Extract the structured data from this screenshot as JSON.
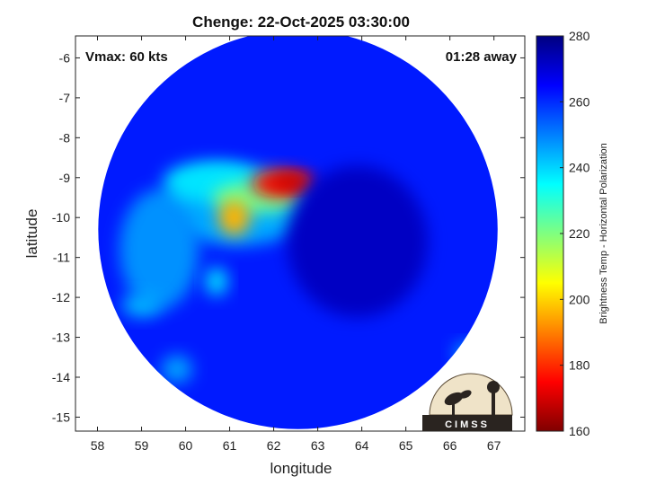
{
  "chart_data": {
    "type": "heatmap",
    "title": "Chenge: 22-Oct-2025 03:30:00",
    "xlabel": "longitude",
    "ylabel": "latitude",
    "xlim": [
      57.5,
      67.7
    ],
    "ylim": [
      -15.35,
      -5.45
    ],
    "xticks": [
      "58",
      "59",
      "60",
      "61",
      "62",
      "63",
      "64",
      "65",
      "66",
      "67"
    ],
    "yticks": [
      "-6",
      "-7",
      "-8",
      "-9",
      "-10",
      "-11",
      "-12",
      "-13",
      "-14",
      "-15"
    ],
    "grid": false,
    "annotations": {
      "top_left": "Vmax: 60 kts",
      "top_right": "01:28 away"
    },
    "colorbar": {
      "label": "Brightness Temp - Horizontal Polarization",
      "range": [
        160,
        280
      ],
      "ticks": [
        "280",
        "260",
        "240",
        "220",
        "200",
        "180",
        "160"
      ],
      "colormap": "jet"
    },
    "swath": {
      "center": [
        62.55,
        -10.3
      ],
      "radius_deg": 5.0
    },
    "features": [
      {
        "name": "background",
        "lon": 62.5,
        "lat": -10.5,
        "rlon": 5.5,
        "rlat": 5.5,
        "value": 262
      },
      {
        "name": "moist-envelope",
        "lon": 61.2,
        "lat": -9.7,
        "rlon": 1.7,
        "rlat": 1.0,
        "value": 245
      },
      {
        "name": "western-band",
        "lon": 59.4,
        "lat": -10.8,
        "rlon": 0.9,
        "rlat": 1.5,
        "value": 248
      },
      {
        "name": "outer-rainband",
        "lon": 60.6,
        "lat": -9.1,
        "rlon": 1.1,
        "rlat": 0.5,
        "value": 238
      },
      {
        "name": "convective-arc",
        "lon": 61.6,
        "lat": -9.5,
        "rlon": 1.0,
        "rlat": 0.4,
        "value": 222
      },
      {
        "name": "convective-core-west",
        "lon": 61.1,
        "lat": -10.0,
        "rlon": 0.35,
        "rlat": 0.45,
        "value": 196
      },
      {
        "name": "convective-core",
        "lon": 62.2,
        "lat": -9.15,
        "rlon": 0.7,
        "rlat": 0.35,
        "value": 176
      },
      {
        "name": "convective-core-max",
        "lon": 62.4,
        "lat": -9.1,
        "rlon": 0.45,
        "rlat": 0.2,
        "value": 168
      },
      {
        "name": "southern-fragment",
        "lon": 60.7,
        "lat": -11.6,
        "rlon": 0.25,
        "rlat": 0.35,
        "value": 238
      },
      {
        "name": "southwest-cells",
        "lon": 59.0,
        "lat": -12.2,
        "rlon": 0.45,
        "rlat": 0.3,
        "value": 244
      },
      {
        "name": "southwest-cells-2",
        "lon": 59.8,
        "lat": -13.8,
        "rlon": 0.35,
        "rlat": 0.35,
        "value": 246
      },
      {
        "name": "southeast-cell",
        "lon": 66.4,
        "lat": -13.4,
        "rlon": 0.3,
        "rlat": 0.25,
        "value": 244
      },
      {
        "name": "eastern-dry-slot",
        "lon": 63.9,
        "lat": -10.6,
        "rlon": 1.6,
        "rlat": 1.9,
        "value": 272
      }
    ],
    "logo_text": "CIMSS"
  }
}
